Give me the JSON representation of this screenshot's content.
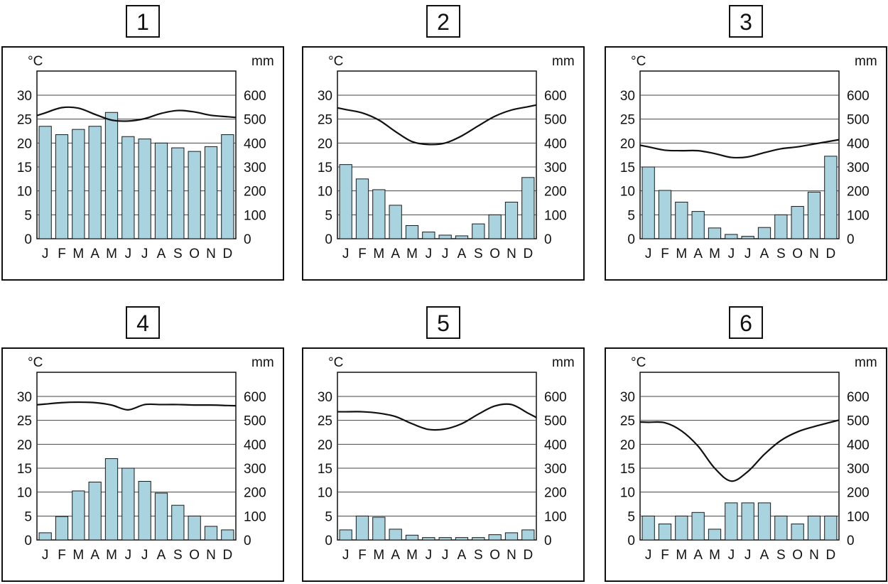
{
  "chart_data": [
    {
      "type": "bar",
      "title": "1",
      "left_unit": "°C",
      "right_unit": "mm",
      "categories": [
        "J",
        "F",
        "M",
        "A",
        "M",
        "J",
        "J",
        "A",
        "S",
        "O",
        "N",
        "D"
      ],
      "y_ticks": [
        "0",
        "5",
        "10",
        "15",
        "20",
        "25",
        "30"
      ],
      "y2_ticks": [
        "0",
        "100",
        "200",
        "300",
        "400",
        "500",
        "600"
      ],
      "ylim": [
        0,
        30
      ],
      "y2lim": [
        0,
        600
      ],
      "grid": true,
      "series": [
        {
          "kind": "bar",
          "axis": "precipitation",
          "values": [
            470,
            435,
            457,
            470,
            528,
            427,
            417,
            400,
            380,
            365,
            385,
            435
          ]
        },
        {
          "kind": "line",
          "axis": "temperature",
          "values": [
            26.3,
            27.4,
            27.3,
            26.0,
            24.8,
            24.6,
            25.1,
            26.2,
            26.8,
            26.5,
            25.8,
            25.5
          ]
        }
      ]
    },
    {
      "type": "bar",
      "title": "2",
      "left_unit": "°C",
      "right_unit": "mm",
      "categories": [
        "J",
        "F",
        "M",
        "A",
        "M",
        "J",
        "J",
        "A",
        "S",
        "O",
        "N",
        "D"
      ],
      "y_ticks": [
        "0",
        "5",
        "10",
        "15",
        "20",
        "25",
        "30"
      ],
      "y2_ticks": [
        "0",
        "100",
        "200",
        "300",
        "400",
        "500",
        "600"
      ],
      "ylim": [
        0,
        30
      ],
      "y2lim": [
        0,
        600
      ],
      "grid": true,
      "series": [
        {
          "kind": "bar",
          "axis": "precipitation",
          "values": [
            310,
            250,
            205,
            140,
            55,
            28,
            15,
            12,
            62,
            100,
            153,
            256
          ]
        },
        {
          "kind": "line",
          "axis": "temperature",
          "values": [
            27.0,
            26.3,
            24.8,
            22.4,
            20.3,
            19.7,
            20.0,
            21.5,
            23.6,
            25.6,
            26.9,
            27.6
          ]
        }
      ]
    },
    {
      "type": "bar",
      "title": "3",
      "left_unit": "°C",
      "right_unit": "mm",
      "categories": [
        "J",
        "F",
        "M",
        "A",
        "M",
        "J",
        "J",
        "A",
        "S",
        "O",
        "N",
        "D"
      ],
      "y_ticks": [
        "0",
        "5",
        "10",
        "15",
        "20",
        "25",
        "30"
      ],
      "y2_ticks": [
        "0",
        "100",
        "200",
        "300",
        "400",
        "500",
        "600"
      ],
      "ylim": [
        0,
        30
      ],
      "y2lim": [
        0,
        600
      ],
      "grid": true,
      "series": [
        {
          "kind": "bar",
          "axis": "precipitation",
          "values": [
            300,
            202,
            153,
            114,
            45,
            18,
            10,
            47,
            100,
            135,
            195,
            345
          ]
        },
        {
          "kind": "line",
          "axis": "temperature",
          "values": [
            19.2,
            18.5,
            18.4,
            18.4,
            17.8,
            17.0,
            17.1,
            18.0,
            18.8,
            19.2,
            19.8,
            20.4
          ]
        }
      ]
    },
    {
      "type": "bar",
      "title": "4",
      "left_unit": "°C",
      "right_unit": "mm",
      "categories": [
        "J",
        "F",
        "M",
        "A",
        "M",
        "J",
        "J",
        "A",
        "S",
        "O",
        "N",
        "D"
      ],
      "y_ticks": [
        "0",
        "5",
        "10",
        "15",
        "20",
        "25",
        "30"
      ],
      "y2_ticks": [
        "0",
        "100",
        "200",
        "300",
        "400",
        "500",
        "600"
      ],
      "ylim": [
        0,
        30
      ],
      "y2lim": [
        0,
        600
      ],
      "grid": true,
      "series": [
        {
          "kind": "bar",
          "axis": "precipitation",
          "values": [
            30,
            98,
            205,
            242,
            340,
            300,
            245,
            196,
            145,
            100,
            57,
            42
          ]
        },
        {
          "kind": "line",
          "axis": "temperature",
          "values": [
            28.4,
            28.7,
            28.8,
            28.7,
            28.2,
            27.2,
            28.3,
            28.3,
            28.3,
            28.2,
            28.2,
            28.1
          ]
        }
      ]
    },
    {
      "type": "bar",
      "title": "5",
      "left_unit": "°C",
      "right_unit": "mm",
      "categories": [
        "J",
        "F",
        "M",
        "A",
        "M",
        "J",
        "J",
        "A",
        "S",
        "O",
        "N",
        "D"
      ],
      "y_ticks": [
        "0",
        "5",
        "10",
        "15",
        "20",
        "25",
        "30"
      ],
      "y2_ticks": [
        "0",
        "100",
        "200",
        "300",
        "400",
        "500",
        "600"
      ],
      "ylim": [
        0,
        30
      ],
      "y2lim": [
        0,
        600
      ],
      "grid": true,
      "series": [
        {
          "kind": "bar",
          "axis": "precipitation",
          "values": [
            42,
            100,
            95,
            45,
            20,
            10,
            10,
            10,
            10,
            22,
            30,
            42
          ]
        },
        {
          "kind": "line",
          "axis": "temperature",
          "values": [
            26.8,
            26.8,
            26.5,
            25.8,
            24.3,
            23.1,
            23.2,
            24.3,
            26.3,
            28.0,
            28.3,
            26.5
          ]
        }
      ]
    },
    {
      "type": "bar",
      "title": "6",
      "left_unit": "°C",
      "right_unit": "mm",
      "categories": [
        "J",
        "F",
        "M",
        "A",
        "M",
        "J",
        "J",
        "A",
        "S",
        "O",
        "N",
        "D"
      ],
      "y_ticks": [
        "0",
        "5",
        "10",
        "15",
        "20",
        "25",
        "30"
      ],
      "y2_ticks": [
        "0",
        "100",
        "200",
        "300",
        "400",
        "500",
        "600"
      ],
      "ylim": [
        0,
        30
      ],
      "y2lim": [
        0,
        600
      ],
      "grid": true,
      "series": [
        {
          "kind": "bar",
          "axis": "precipitation",
          "values": [
            100,
            67,
            100,
            115,
            45,
            155,
            155,
            155,
            100,
            67,
            100,
            100
          ]
        },
        {
          "kind": "line",
          "axis": "temperature",
          "values": [
            24.6,
            24.5,
            22.8,
            19.6,
            15.0,
            12.3,
            14.3,
            17.9,
            20.8,
            22.6,
            23.7,
            24.6
          ]
        }
      ]
    }
  ],
  "colors": {
    "bar_fill": "#a9d3df",
    "bar_stroke": "#1a1a1a",
    "line": "#111111",
    "grid": "#444444",
    "frame": "#111111"
  }
}
